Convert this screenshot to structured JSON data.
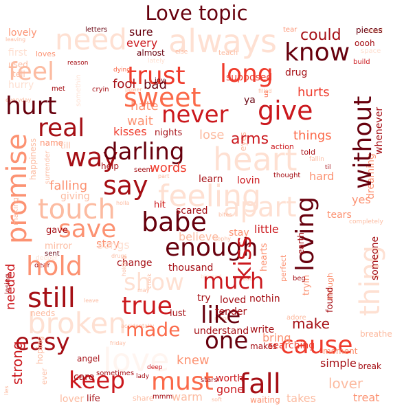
{
  "title": "Love topic",
  "palette": [
    "#67000d",
    "#a50f15",
    "#cb181d",
    "#ef3b2c",
    "#fb6a4a",
    "#fc9272",
    "#fcbba1",
    "#fee0d2",
    "#fff5f0"
  ],
  "words": [
    {
      "text": "heart",
      "c": "#fee0d2"
    },
    {
      "text": "need",
      "c": "#fee0d2"
    },
    {
      "text": "always",
      "c": "#fee0d2"
    },
    {
      "text": "love",
      "c": "#fff5f0"
    },
    {
      "text": "feeling",
      "c": "#fee0d2"
    },
    {
      "text": "apart",
      "c": "#fee0d2"
    },
    {
      "text": "thing",
      "c": "#fee0d2"
    },
    {
      "text": "broken",
      "c": "#fee0d2"
    },
    {
      "text": "feel",
      "c": "#fcbba1"
    },
    {
      "text": "touch",
      "c": "#fcbba1"
    },
    {
      "text": "show",
      "c": "#fee0d2"
    },
    {
      "text": "know",
      "c": "#67000d"
    },
    {
      "text": "trust",
      "c": "#ef3b2c"
    },
    {
      "text": "sweet",
      "c": "#fb6a4a"
    },
    {
      "text": "long",
      "c": "#ef3b2c"
    },
    {
      "text": "give",
      "c": "#cb181d"
    },
    {
      "text": "never",
      "c": "#cb181d"
    },
    {
      "text": "hurt",
      "c": "#67000d"
    },
    {
      "text": "real",
      "c": "#a50f15"
    },
    {
      "text": "way",
      "c": "#a50f15"
    },
    {
      "text": "darling",
      "c": "#67000d"
    },
    {
      "text": "say",
      "c": "#a50f15"
    },
    {
      "text": "without",
      "c": "#67000d"
    },
    {
      "text": "promise",
      "c": "#fc9272"
    },
    {
      "text": "save",
      "c": "#fc9272"
    },
    {
      "text": "babe",
      "c": "#67000d"
    },
    {
      "text": "enough",
      "c": "#67000d"
    },
    {
      "text": "kiss",
      "c": "#cb181d"
    },
    {
      "text": "loving",
      "c": "#67000d"
    },
    {
      "text": "hold",
      "c": "#fc9272"
    },
    {
      "text": "much",
      "c": "#cb181d"
    },
    {
      "text": "still",
      "c": "#a50f15"
    },
    {
      "text": "true",
      "c": "#cb181d"
    },
    {
      "text": "like",
      "c": "#67000d"
    },
    {
      "text": "easy",
      "c": "#a50f15"
    },
    {
      "text": "made",
      "c": "#fb6a4a"
    },
    {
      "text": "one",
      "c": "#67000d"
    },
    {
      "text": "cause",
      "c": "#ef3b2c"
    },
    {
      "text": "keep",
      "c": "#cb181d"
    },
    {
      "text": "must",
      "c": "#fb6a4a"
    },
    {
      "text": "fall",
      "c": "#a50f15"
    },
    {
      "text": "could",
      "c": "#a50f15"
    },
    {
      "text": "sure",
      "c": "#67000d"
    },
    {
      "text": "every",
      "c": "#cb181d"
    },
    {
      "text": "lovely",
      "c": "#fc9272"
    },
    {
      "text": "first",
      "c": "#fee0d2"
    },
    {
      "text": "used",
      "c": "#fcbba1"
    },
    {
      "text": "tell",
      "c": "#fcbba1"
    },
    {
      "text": "hurry",
      "c": "#fee0d2"
    },
    {
      "text": "letters",
      "c": "#67000d"
    },
    {
      "text": "leaving",
      "c": "#fcbba1"
    },
    {
      "text": "tear",
      "c": "#fc9272"
    },
    {
      "text": "pieces",
      "c": "#67000d"
    },
    {
      "text": "oooh",
      "c": "#a50f15"
    },
    {
      "text": "space",
      "c": "#fee0d2"
    },
    {
      "text": "build",
      "c": "#cb181d"
    },
    {
      "text": "almost",
      "c": "#67000d"
    },
    {
      "text": "else",
      "c": "#fcbba1"
    },
    {
      "text": "teach",
      "c": "#fcbba1"
    },
    {
      "text": "reason",
      "c": "#a50f15"
    },
    {
      "text": "dying",
      "c": "#fb6a4a"
    },
    {
      "text": "supposed",
      "c": "#ef3b2c"
    },
    {
      "text": "drug",
      "c": "#a50f15"
    },
    {
      "text": "joy",
      "c": "#67000d"
    },
    {
      "text": "fool",
      "c": "#a50f15"
    },
    {
      "text": "bad",
      "c": "#67000d"
    },
    {
      "text": "met",
      "c": "#a50f15"
    },
    {
      "text": "cryin",
      "c": "#a50f15"
    },
    {
      "text": "power",
      "c": "#fcbba1"
    },
    {
      "text": "filled",
      "c": "#fcbba1"
    },
    {
      "text": "us",
      "c": "#fb6a4a"
    },
    {
      "text": "hurts",
      "c": "#ef3b2c"
    },
    {
      "text": "hate",
      "c": "#fc9272"
    },
    {
      "text": "ya",
      "c": "#67000d"
    },
    {
      "text": "wait",
      "c": "#fc9272"
    },
    {
      "text": "kisses",
      "c": "#ef3b2c"
    },
    {
      "text": "nights",
      "c": "#a50f15"
    },
    {
      "text": "things",
      "c": "#fb6a4a"
    },
    {
      "text": "arms",
      "c": "#cb181d"
    },
    {
      "text": "whenever",
      "c": "#a50f15"
    },
    {
      "text": "name",
      "c": "#fc9272"
    },
    {
      "text": "till",
      "c": "#fcbba1"
    },
    {
      "text": "lose",
      "c": "#fcbba1"
    },
    {
      "text": "eyes",
      "c": "#fcbba1"
    },
    {
      "text": "action",
      "c": "#cb181d"
    },
    {
      "text": "told",
      "c": "#a50f15"
    },
    {
      "text": "fallin",
      "c": "#fcbba1"
    },
    {
      "text": "til",
      "c": "#a50f15"
    },
    {
      "text": "happiness",
      "c": "#fcbba1"
    },
    {
      "text": "surrender",
      "c": "#fcbba1"
    },
    {
      "text": "help",
      "c": "#a50f15"
    },
    {
      "text": "seem",
      "c": "#a50f15"
    },
    {
      "text": "words",
      "c": "#ef3b2c"
    },
    {
      "text": "learn",
      "c": "#a50f15"
    },
    {
      "text": "lovin",
      "c": "#cb181d"
    },
    {
      "text": "thought",
      "c": "#a50f15"
    },
    {
      "text": "hard",
      "c": "#fc9272"
    },
    {
      "text": "dreaming",
      "c": "#fc9272"
    },
    {
      "text": "falling",
      "c": "#fc9272"
    },
    {
      "text": "giving",
      "c": "#fcbba1"
    },
    {
      "text": "yes",
      "c": "#fc9272"
    },
    {
      "text": "making",
      "c": "#fcbba1"
    },
    {
      "text": "holla",
      "c": "#fcbba1"
    },
    {
      "text": "hit",
      "c": "#cb181d"
    },
    {
      "text": "scared",
      "c": "#a50f15"
    },
    {
      "text": "bites",
      "c": "#fcbba1"
    },
    {
      "text": "tears",
      "c": "#fc9272"
    },
    {
      "text": "completely",
      "c": "#fcbba1"
    },
    {
      "text": "gave",
      "c": "#a50f15"
    },
    {
      "text": "songs",
      "c": "#fee0d2"
    },
    {
      "text": "believe",
      "c": "#fcbba1"
    },
    {
      "text": "trophy",
      "c": "#fcbba1"
    },
    {
      "text": "stay",
      "c": "#fc9272"
    },
    {
      "text": "little",
      "c": "#cb181d"
    },
    {
      "text": "mirror",
      "c": "#fcbba1"
    },
    {
      "text": "drugs",
      "c": "#fcbba1"
    },
    {
      "text": "change",
      "c": "#a50f15"
    },
    {
      "text": "thousand",
      "c": "#a50f15"
    },
    {
      "text": "hearts",
      "c": "#fc9272"
    },
    {
      "text": "tryin",
      "c": "#fc9272"
    },
    {
      "text": "earth",
      "c": "#a50f15"
    },
    {
      "text": "perfect",
      "c": "#fc9272"
    },
    {
      "text": "beg",
      "c": "#a50f15"
    },
    {
      "text": "someone",
      "c": "#a50f15"
    },
    {
      "text": "losing",
      "c": "#a50f15"
    },
    {
      "text": "deeper",
      "c": "#fee0d2"
    },
    {
      "text": "blessed",
      "c": "#fee0d2"
    },
    {
      "text": "beats",
      "c": "#fcbba1"
    },
    {
      "text": "crook",
      "c": "#fcbba1"
    },
    {
      "text": "holding",
      "c": "#fcbba1"
    },
    {
      "text": "sent",
      "c": "#67000d"
    },
    {
      "text": "dear",
      "c": "#a50f15"
    },
    {
      "text": "try",
      "c": "#a50f15"
    },
    {
      "text": "loved",
      "c": "#a50f15"
    },
    {
      "text": "nothin",
      "c": "#a50f15"
    },
    {
      "text": "though",
      "c": "#fc9272"
    },
    {
      "text": "found",
      "c": "#a50f15"
    },
    {
      "text": "leave",
      "c": "#fcbba1"
    },
    {
      "text": "needed",
      "c": "#cb181d"
    },
    {
      "text": "may",
      "c": "#fcbba1"
    },
    {
      "text": "lust",
      "c": "#a50f15"
    },
    {
      "text": "adore",
      "c": "#fcbba1"
    },
    {
      "text": "tender",
      "c": "#a50f15"
    },
    {
      "text": "make",
      "c": "#a50f15"
    },
    {
      "text": "needs",
      "c": "#fcbba1"
    },
    {
      "text": "moon",
      "c": "#fcbba1"
    },
    {
      "text": "accidentally",
      "c": "#fcbba1"
    },
    {
      "text": "understand",
      "c": "#a50f15"
    },
    {
      "text": "write",
      "c": "#a50f15"
    },
    {
      "text": "bring",
      "c": "#fc9272"
    },
    {
      "text": "breathe",
      "c": "#fcbba1"
    },
    {
      "text": "makes",
      "c": "#a50f15"
    },
    {
      "text": "angel",
      "c": "#a50f15"
    },
    {
      "text": "friday",
      "c": "#fcbba1"
    },
    {
      "text": "care",
      "c": "#a50f15"
    },
    {
      "text": "searching",
      "c": "#ef3b2c"
    },
    {
      "text": "knew",
      "c": "#fc9272"
    },
    {
      "text": "simple",
      "c": "#a50f15"
    },
    {
      "text": "moment",
      "c": "#fc9272"
    },
    {
      "text": "deep",
      "c": "#cb181d"
    },
    {
      "text": "hoping",
      "c": "#fcbba1"
    },
    {
      "text": "strong",
      "c": "#cb181d"
    },
    {
      "text": "sometimes",
      "c": "#a50f15"
    },
    {
      "text": "lady",
      "c": "#a50f15"
    },
    {
      "text": "stars",
      "c": "#a50f15"
    },
    {
      "text": "worth",
      "c": "#cb181d"
    },
    {
      "text": "gone",
      "c": "#cb181d"
    },
    {
      "text": "break",
      "c": "#a50f15"
    },
    {
      "text": "lies",
      "c": "#fcbba1"
    },
    {
      "text": "ever",
      "c": "#fcbba1"
    },
    {
      "text": "lover",
      "c": "#fcbba1"
    },
    {
      "text": "life",
      "c": "#a50f15"
    },
    {
      "text": "share",
      "c": "#fcbba1"
    },
    {
      "text": "mmm",
      "c": "#a50f15"
    },
    {
      "text": "soft",
      "c": "#fcbba1"
    },
    {
      "text": "warm",
      "c": "#fcbba1"
    },
    {
      "text": "waiting",
      "c": "#fc9272"
    },
    {
      "text": "takes",
      "c": "#fcbba1"
    },
    {
      "text": "treat",
      "c": "#fc9272"
    },
    {
      "text": "loves",
      "c": "#fc9272"
    },
    {
      "text": "somethin",
      "c": "#fee0d2"
    },
    {
      "text": "lately",
      "c": "#fee0d2"
    },
    {
      "text": "everyday",
      "c": "#fcbba1"
    },
    {
      "text": "part",
      "c": "#fcbba1"
    },
    {
      "text": "mad",
      "c": "#fcbba1"
    },
    {
      "text": "smile",
      "c": "#fee0d2"
    }
  ]
}
